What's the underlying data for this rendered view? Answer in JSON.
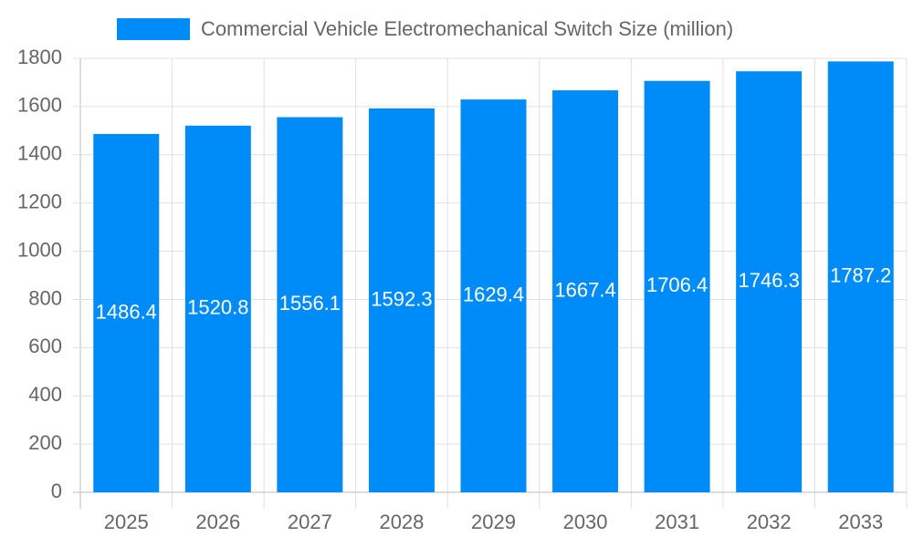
{
  "chart_data": {
    "type": "bar",
    "categories": [
      "2025",
      "2026",
      "2027",
      "2028",
      "2029",
      "2030",
      "2031",
      "2032",
      "2033"
    ],
    "series": [
      {
        "name": "Commercial Vehicle Electromechanical Switch Size (million)",
        "color": "#008cf8",
        "values": [
          1486.4,
          1520.8,
          1556.1,
          1592.3,
          1629.4,
          1667.4,
          1706.4,
          1746.3,
          1787.2
        ]
      }
    ],
    "ylim": [
      0,
      1800
    ],
    "yticks": [
      0,
      200,
      400,
      600,
      800,
      1000,
      1200,
      1400,
      1600,
      1800
    ],
    "grid": true,
    "legend": "top"
  }
}
